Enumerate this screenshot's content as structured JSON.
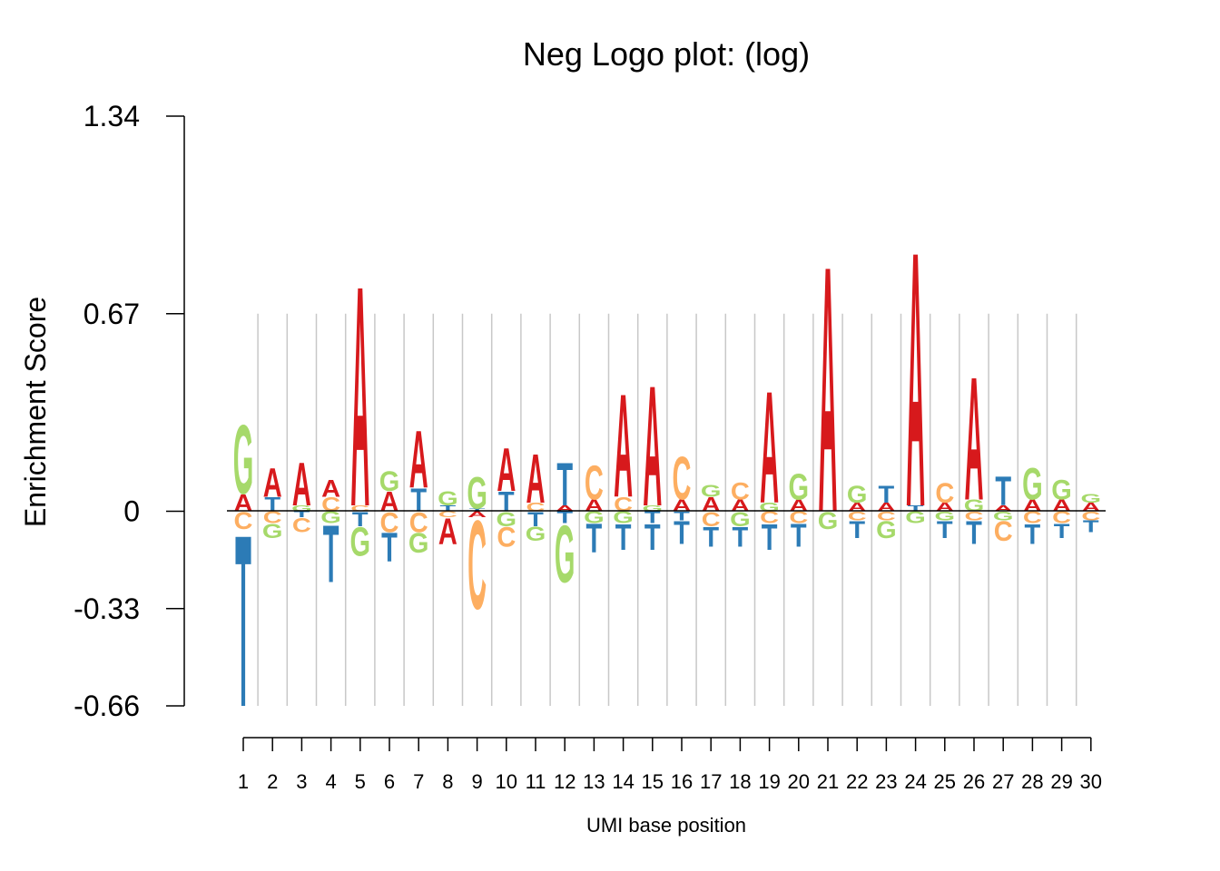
{
  "chart_data": {
    "type": "sequence-logo",
    "title": "Neg Logo plot: (log)",
    "xlabel": "UMI base position",
    "ylabel": "Enrichment Score",
    "y_ticks": [
      "1.34",
      "0.67",
      "0",
      "-0.33",
      "-0.66"
    ],
    "y_tick_values": [
      1.34,
      0.67,
      0,
      -0.33,
      -0.66
    ],
    "ylim": [
      -0.66,
      1.34
    ],
    "grid_top": 0.67,
    "positions": [
      1,
      2,
      3,
      4,
      5,
      6,
      7,
      8,
      9,
      10,
      11,
      12,
      13,
      14,
      15,
      16,
      17,
      18,
      19,
      20,
      21,
      22,
      23,
      24,
      25,
      26,
      27,
      28,
      29,
      30
    ],
    "colors": {
      "A": "#d7191c",
      "C": "#fdae61",
      "G": "#a6d96a",
      "T": "#2c7bb6"
    },
    "stacks": [
      {
        "pos": [
          [
            "A",
            0.06
          ],
          [
            "G",
            0.24
          ]
        ],
        "neg": [
          [
            "C",
            0.06
          ],
          [
            "T",
            0.6
          ]
        ]
      },
      {
        "pos": [
          [
            "T",
            0.05
          ],
          [
            "A",
            0.1
          ]
        ],
        "neg": [
          [
            "C",
            0.04
          ],
          [
            "G",
            0.05
          ]
        ]
      },
      {
        "pos": [
          [
            "G",
            0.02
          ],
          [
            "A",
            0.15
          ]
        ],
        "neg": [
          [
            "T",
            0.02
          ],
          [
            "C",
            0.05
          ]
        ]
      },
      {
        "pos": [
          [
            "C",
            0.05
          ],
          [
            "A",
            0.06
          ]
        ],
        "neg": [
          [
            "G",
            0.04
          ],
          [
            "T",
            0.2
          ]
        ]
      },
      {
        "pos": [
          [
            "C",
            0.02
          ],
          [
            "A",
            0.77
          ]
        ],
        "neg": [
          [
            "T",
            0.05
          ],
          [
            "G",
            0.1
          ]
        ]
      },
      {
        "pos": [
          [
            "A",
            0.07
          ],
          [
            "G",
            0.07
          ]
        ],
        "neg": [
          [
            "C",
            0.07
          ],
          [
            "T",
            0.1
          ]
        ]
      },
      {
        "pos": [
          [
            "T",
            0.08
          ],
          [
            "A",
            0.2
          ]
        ],
        "neg": [
          [
            "C",
            0.07
          ],
          [
            "G",
            0.07
          ]
        ]
      },
      {
        "pos": [
          [
            "T",
            0.02
          ],
          [
            "G",
            0.05
          ]
        ],
        "neg": [
          [
            "C",
            0.02
          ],
          [
            "A",
            0.09
          ]
        ]
      },
      {
        "pos": [
          [
            "T",
            0.01
          ],
          [
            "G",
            0.11
          ]
        ],
        "neg": [
          [
            "A",
            0.02
          ],
          [
            "C",
            0.31
          ]
        ]
      },
      {
        "pos": [
          [
            "T",
            0.07
          ],
          [
            "A",
            0.15
          ]
        ],
        "neg": [
          [
            "G",
            0.05
          ],
          [
            "C",
            0.07
          ]
        ]
      },
      {
        "pos": [
          [
            "C",
            0.03
          ],
          [
            "A",
            0.17
          ]
        ],
        "neg": [
          [
            "T",
            0.05
          ],
          [
            "G",
            0.05
          ]
        ]
      },
      {
        "pos": [
          [
            "A",
            0.02
          ],
          [
            "T",
            0.15
          ]
        ],
        "neg": [
          [
            "T",
            0.04
          ],
          [
            "G",
            0.2
          ]
        ]
      },
      {
        "pos": [
          [
            "A",
            0.04
          ],
          [
            "C",
            0.12
          ]
        ],
        "neg": [
          [
            "G",
            0.04
          ],
          [
            "T",
            0.1
          ]
        ]
      },
      {
        "pos": [
          [
            "C",
            0.05
          ],
          [
            "A",
            0.36
          ]
        ],
        "neg": [
          [
            "G",
            0.04
          ],
          [
            "T",
            0.09
          ]
        ]
      },
      {
        "pos": [
          [
            "G",
            0.02
          ],
          [
            "A",
            0.42
          ]
        ],
        "neg": [
          [
            "T",
            0.04
          ],
          [
            "T",
            0.09
          ]
        ]
      },
      {
        "pos": [
          [
            "A",
            0.04
          ],
          [
            "C",
            0.15
          ]
        ],
        "neg": [
          [
            "T",
            0.03
          ],
          [
            "T",
            0.08
          ]
        ]
      },
      {
        "pos": [
          [
            "A",
            0.05
          ],
          [
            "G",
            0.04
          ]
        ],
        "neg": [
          [
            "C",
            0.05
          ],
          [
            "T",
            0.07
          ]
        ]
      },
      {
        "pos": [
          [
            "A",
            0.04
          ],
          [
            "C",
            0.06
          ]
        ],
        "neg": [
          [
            "G",
            0.05
          ],
          [
            "T",
            0.07
          ]
        ]
      },
      {
        "pos": [
          [
            "G",
            0.03
          ],
          [
            "A",
            0.39
          ]
        ],
        "neg": [
          [
            "C",
            0.04
          ],
          [
            "T",
            0.09
          ]
        ]
      },
      {
        "pos": [
          [
            "A",
            0.04
          ],
          [
            "G",
            0.09
          ]
        ],
        "neg": [
          [
            "C",
            0.04
          ],
          [
            "T",
            0.08
          ]
        ]
      },
      {
        "pos": [
          [
            "A",
            0.86
          ]
        ],
        "neg": [
          [
            "G",
            0.06
          ]
        ]
      },
      {
        "pos": [
          [
            "A",
            0.03
          ],
          [
            "G",
            0.06
          ]
        ],
        "neg": [
          [
            "C",
            0.03
          ],
          [
            "T",
            0.06
          ]
        ]
      },
      {
        "pos": [
          [
            "A",
            0.03
          ],
          [
            "T",
            0.06
          ]
        ],
        "neg": [
          [
            "C",
            0.03
          ],
          [
            "G",
            0.06
          ]
        ]
      },
      {
        "pos": [
          [
            "T",
            0.02
          ],
          [
            "A",
            0.89
          ]
        ],
        "neg": [
          [
            "G",
            0.04
          ]
        ]
      },
      {
        "pos": [
          [
            "A",
            0.03
          ],
          [
            "C",
            0.07
          ]
        ],
        "neg": [
          [
            "G",
            0.03
          ],
          [
            "T",
            0.06
          ]
        ]
      },
      {
        "pos": [
          [
            "G",
            0.04
          ],
          [
            "A",
            0.43
          ]
        ],
        "neg": [
          [
            "C",
            0.03
          ],
          [
            "T",
            0.08
          ]
        ]
      },
      {
        "pos": [
          [
            "A",
            0.02
          ],
          [
            "T",
            0.1
          ]
        ],
        "neg": [
          [
            "G",
            0.03
          ],
          [
            "C",
            0.07
          ]
        ]
      },
      {
        "pos": [
          [
            "A",
            0.04
          ],
          [
            "G",
            0.11
          ]
        ],
        "neg": [
          [
            "C",
            0.04
          ],
          [
            "T",
            0.07
          ]
        ]
      },
      {
        "pos": [
          [
            "A",
            0.04
          ],
          [
            "G",
            0.07
          ]
        ],
        "neg": [
          [
            "C",
            0.04
          ],
          [
            "T",
            0.05
          ]
        ]
      },
      {
        "pos": [
          [
            "A",
            0.03
          ],
          [
            "G",
            0.03
          ]
        ],
        "neg": [
          [
            "C",
            0.03
          ],
          [
            "T",
            0.04
          ]
        ]
      }
    ]
  }
}
